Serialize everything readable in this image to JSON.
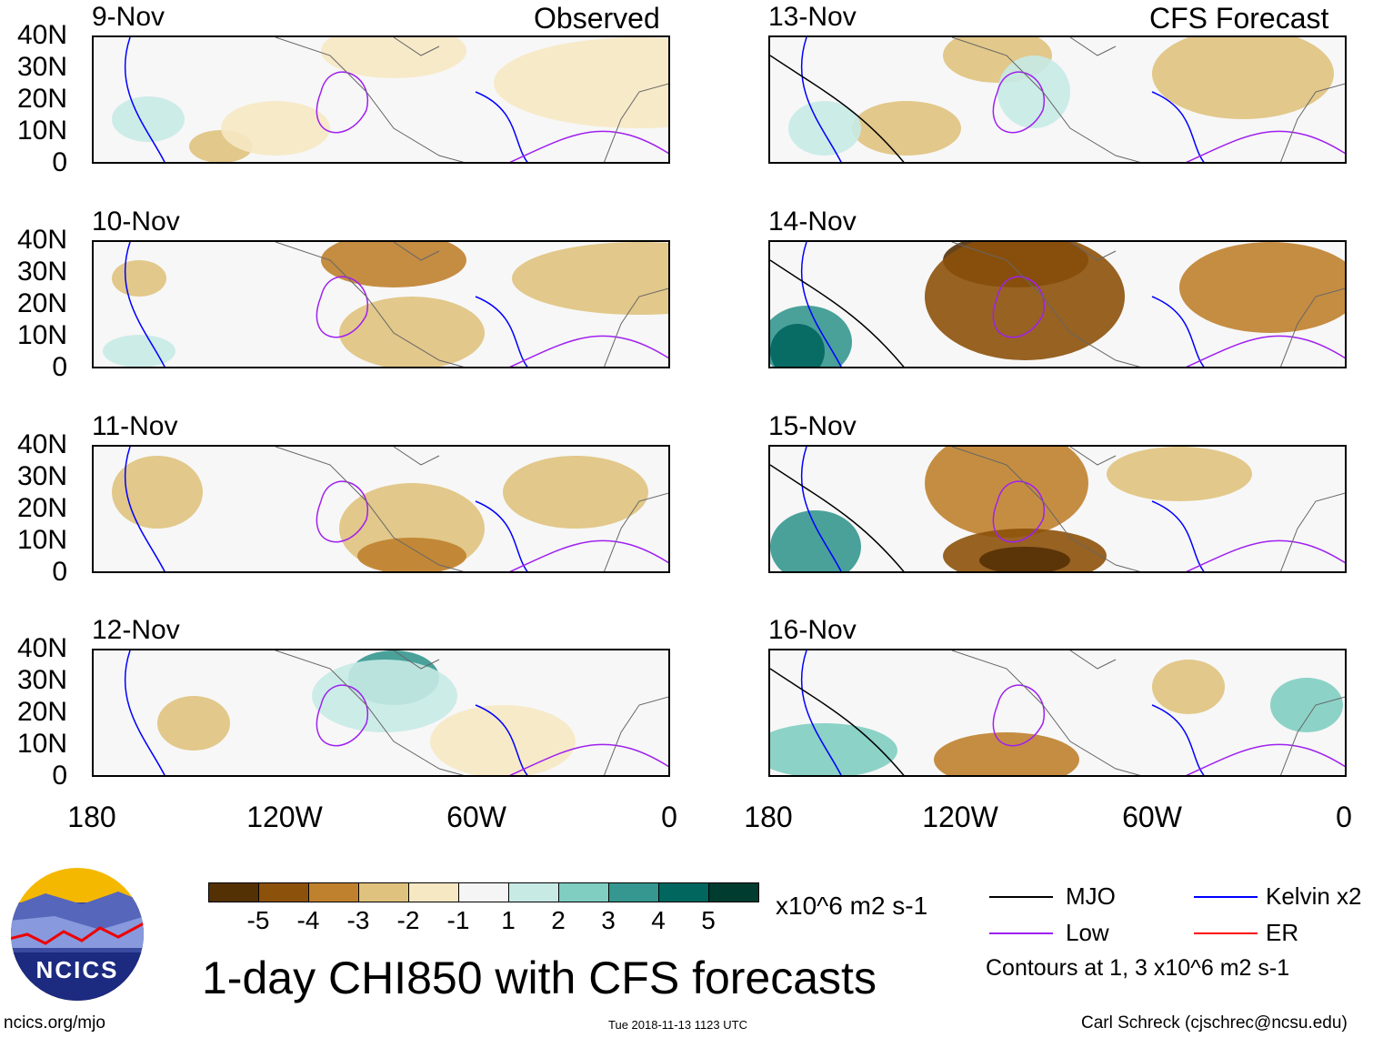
{
  "header": {
    "left_label": "Observed",
    "right_label": "CFS Forecast"
  },
  "panels": [
    {
      "date": "9-Nov",
      "column": "left"
    },
    {
      "date": "10-Nov",
      "column": "left"
    },
    {
      "date": "11-Nov",
      "column": "left"
    },
    {
      "date": "12-Nov",
      "column": "left"
    },
    {
      "date": "13-Nov",
      "column": "right"
    },
    {
      "date": "14-Nov",
      "column": "right"
    },
    {
      "date": "15-Nov",
      "column": "right"
    },
    {
      "date": "16-Nov",
      "column": "right"
    }
  ],
  "chart_data": {
    "type": "heatmap",
    "title": "1-day CHI850 with CFS forecasts",
    "variable": "CHI850 anomaly",
    "units": "x10^6 m2 s-1",
    "y_ticks": [
      "40N",
      "30N",
      "20N",
      "10N",
      "0"
    ],
    "x_ticks": [
      "180",
      "120W",
      "60W",
      "0"
    ],
    "colorbar": {
      "levels": [
        -5,
        -4,
        -3,
        -2,
        -1,
        1,
        2,
        3,
        4,
        5
      ],
      "labels": [
        "-5",
        "-4",
        "-3",
        "-2",
        "-1",
        "1",
        "2",
        "3",
        "4",
        "5"
      ],
      "colors": [
        "#543005",
        "#8c510a",
        "#bf812d",
        "#dfc27d",
        "#f6e8c3",
        "#f5f5f5",
        "#c7eae5",
        "#80cdc1",
        "#35978f",
        "#01665e",
        "#003c30"
      ]
    },
    "legend": [
      {
        "label": "MJO",
        "color": "#000000"
      },
      {
        "label": "Kelvin x2",
        "color": "#0000ff"
      },
      {
        "label": "Low",
        "color": "#a020f0"
      },
      {
        "label": "ER",
        "color": "#ff0000"
      }
    ],
    "contour_note": "Contours at 1, 3 x10^6 m2 s-1"
  },
  "footer": {
    "logo_text": "NCICS",
    "url": "ncics.org/mjo",
    "timestamp": "Tue 2018-11-13 1123 UTC",
    "credit": "Carl Schreck (cjschrec@ncsu.edu)"
  }
}
